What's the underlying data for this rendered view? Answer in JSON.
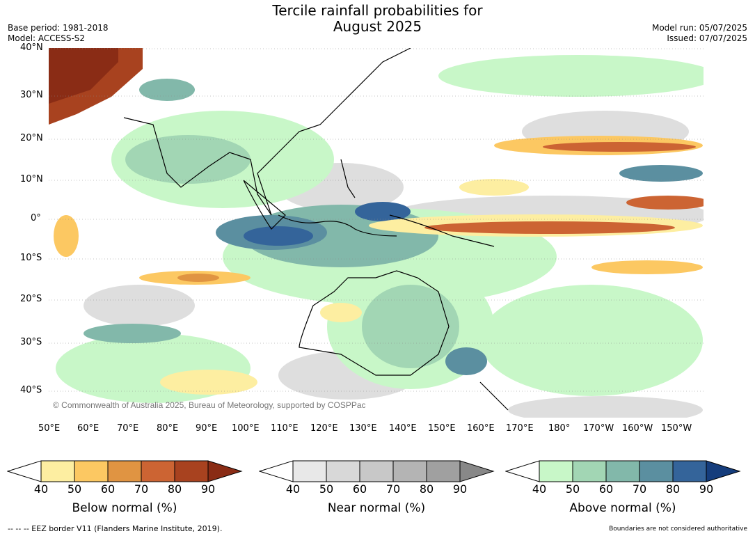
{
  "title_line1": "Tercile rainfall probabilities for",
  "title_line2": "August 2025",
  "base_period": "Base period: 1981-2018",
  "model": "Model: ACCESS-S2",
  "model_run": "Model run: 05/07/2025",
  "issued": "Issued: 07/07/2025",
  "copyright": "© Commonwealth of Australia 2025, Bureau of Meteorology, supported by COSPPac",
  "lat_labels": [
    "40°N",
    "30°N",
    "20°N",
    "10°N",
    "0°",
    "10°S",
    "20°S",
    "30°S",
    "40°S"
  ],
  "lon_labels": [
    "50°E",
    "60°E",
    "70°E",
    "80°E",
    "90°E",
    "100°E",
    "110°E",
    "120°E",
    "130°E",
    "140°E",
    "150°E",
    "160°E",
    "170°E",
    "180°",
    "170°W",
    "160°W",
    "150°W"
  ],
  "colorbars": [
    {
      "label": "Below normal (%)",
      "ticks": [
        "40",
        "50",
        "60",
        "70",
        "80",
        "90"
      ],
      "colors": [
        "#ffffff",
        "#fdeea1",
        "#fcc862",
        "#e09442",
        "#cc6433",
        "#a8421f",
        "#8a2c15"
      ]
    },
    {
      "label": "Near normal (%)",
      "ticks": [
        "40",
        "50",
        "60",
        "70",
        "80",
        "90"
      ],
      "colors": [
        "#ffffff",
        "#e8e8e8",
        "#d8d8d8",
        "#c8c8c8",
        "#b4b4b4",
        "#a0a0a0",
        "#888888"
      ]
    },
    {
      "label": "Above normal (%)",
      "ticks": [
        "40",
        "50",
        "60",
        "70",
        "80",
        "90"
      ],
      "colors": [
        "#ffffff",
        "#c8f7c8",
        "#a2d6b4",
        "#82b8aa",
        "#5b8fa0",
        "#34649a",
        "#153d7c"
      ]
    }
  ],
  "eez_note": "--  --  -- EEZ border V11 (Flanders Marine Institute, 2019).",
  "boundary_note": "Boundaries are not considered authoritative"
}
